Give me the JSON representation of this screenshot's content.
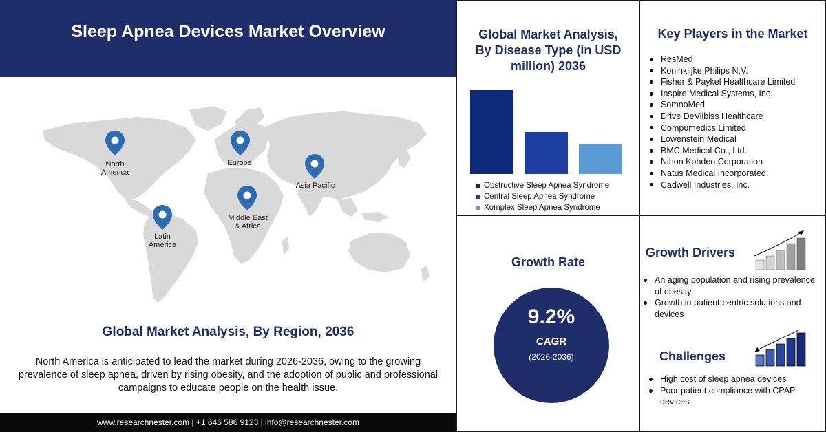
{
  "header": {
    "title": "Sleep Apnea Devices Market Overview"
  },
  "map": {
    "regions": [
      {
        "name": "North America",
        "lines": [
          "North",
          "America"
        ]
      },
      {
        "name": "Europe",
        "lines": [
          "Europe"
        ]
      },
      {
        "name": "Asia Pacific",
        "lines": [
          "Asia Pacific"
        ]
      },
      {
        "name": "Middle East & Africa",
        "lines": [
          "Middle East",
          "& Africa"
        ]
      },
      {
        "name": "Latin America",
        "lines": [
          "Latin",
          "America"
        ]
      }
    ],
    "pin_color": "#2e6cb0"
  },
  "region_section": {
    "title": "Global Market Analysis, By Region, 2036",
    "text": "North America is anticipated to lead the market during 2026-2036, owing to the growing prevalence of sleep apnea, driven by rising obesity, and the adoption of public and professional campaigns to educate people on the health issue."
  },
  "footer": {
    "text": "www.researchnester.com | +1 646 586 9123 | info@researchnester.com"
  },
  "disease": {
    "title_lines": [
      "Global Market Analysis,",
      "By Disease Type (in USD",
      "million) 2036"
    ]
  },
  "chart_data": {
    "type": "bar",
    "title": "Global Market Analysis, By Disease Type (in USD million) 2036",
    "categories": [
      "Obstructive Sleep Apnea Syndrome",
      "Central Sleep Apnea Syndrome",
      "Xomplex Sleep Apnea Syndrome"
    ],
    "values": [
      100,
      50,
      36
    ],
    "colors": [
      "#0e2a7a",
      "#1d3fa3",
      "#5b9bd5"
    ],
    "ylim": [
      0,
      100
    ],
    "grid": false,
    "legend": "bottom"
  },
  "players": {
    "title": "Key Players in the Market",
    "items": [
      "ResMed",
      "Koninklijke Philips N.V.",
      "Fisher & Paykel Healthcare Limited",
      "Inspire Medical Systems, Inc.",
      "SomnoMed",
      "Drive DeVilbiss Healthcare",
      "Compumedics Limited",
      "Löwenstein Medical",
      "BMC Medical Co., Ltd.",
      "Nihon Kohden Corporation",
      "Natus Medical Incorporated:",
      "Cadwell Industries, Inc."
    ]
  },
  "growth": {
    "title": "Growth Rate",
    "value": "9.2%",
    "label": "CAGR",
    "period": "(2026-2036)"
  },
  "drivers": {
    "title": "Growth Drivers",
    "items": [
      "An aging population and rising prevalence of obesity",
      "Growth in patient-centric solutions and devices"
    ],
    "icon": "growth-bars-icon"
  },
  "challenges": {
    "title": "Challenges",
    "items": [
      "High cost of sleep apnea devices",
      "Poor patient compliance with CPAP devices"
    ],
    "icon": "challenge-bars-icon"
  },
  "colors": {
    "navy": "#1f2d6b",
    "map": "#d9d9d9"
  }
}
